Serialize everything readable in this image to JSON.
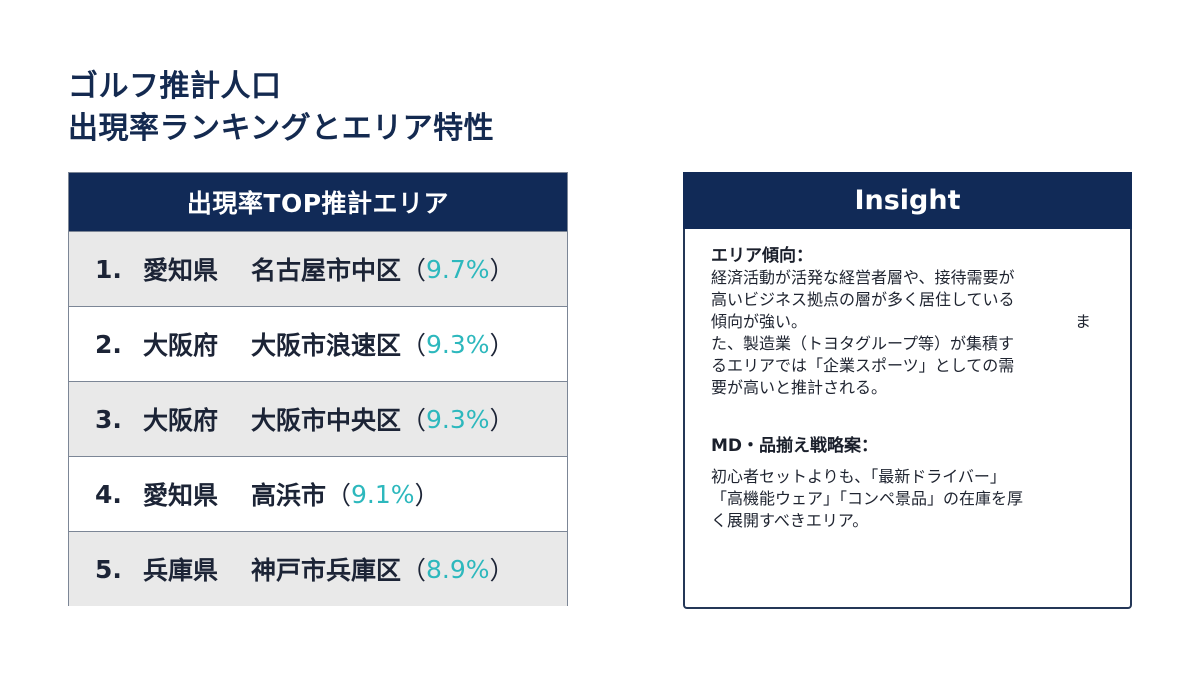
{
  "title": {
    "line1": "ゴルフ推計人口",
    "line2": "出現率ランキングとエリア特性"
  },
  "ranking": {
    "header": "出現率TOP推計エリア",
    "rows": [
      {
        "rank": "1.",
        "prefecture": "愛知県",
        "city": "名古屋市中区",
        "pct": "9.7%"
      },
      {
        "rank": "2.",
        "prefecture": "大阪府",
        "city": "大阪市浪速区",
        "pct": "9.3%"
      },
      {
        "rank": "3.",
        "prefecture": "大阪府",
        "city": "大阪市中央区",
        "pct": "9.3%"
      },
      {
        "rank": "4.",
        "prefecture": "愛知県",
        "city": "高浜市",
        "pct": "9.1%"
      },
      {
        "rank": "5.",
        "prefecture": "兵庫県",
        "city": "神戸市兵庫区",
        "pct": "8.9%"
      }
    ],
    "paren_open": "（",
    "paren_close": "）"
  },
  "insight": {
    "header": "Insight",
    "area_trend": {
      "title": "エリア傾向：",
      "lines": [
        "経済活動が活発な経営者層や、接待需要が",
        "高いビジネス拠点の層が多く居住している",
        "傾向が強い。",
        "ま",
        "た、製造業（トヨタグループ等）が集積す",
        "るエリアでは「企業スポーツ」としての需",
        "要が高いと推計される。"
      ]
    },
    "md_strategy": {
      "title": "MD・品揃え戦略案：",
      "lines": [
        "初心者セットよりも、「最新ドライバー」",
        "「高機能ウェア」「コンペ景品」の在庫を厚",
        "く展開すべきエリア。"
      ]
    }
  },
  "colors": {
    "navy": "#112a57",
    "title_navy": "#142a50",
    "teal_pct": "#2db8bd",
    "row_shade": "#e9e9e9"
  }
}
